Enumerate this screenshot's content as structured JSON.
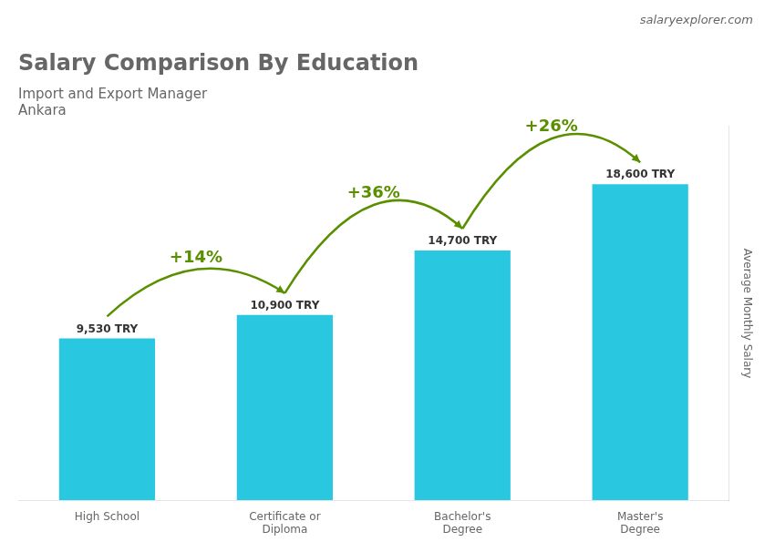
{
  "chart_data": {
    "type": "bar",
    "title": "Salary Comparison By Education",
    "subtitle": "Import and Export Manager",
    "y_label": "Average Monthly Salary",
    "categories": [
      "High School",
      "Certificate or\nDiploma",
      "Bachelor's\nDegree",
      "Master's\nDegree"
    ],
    "values": [
      9530,
      10900,
      14700,
      18600
    ],
    "value_labels": [
      "9,530 TRY",
      "10,900 TRY",
      "14,700 TRY",
      "18,600 TRY"
    ],
    "data_labels": true,
    "color": "#29c8e0",
    "ylim": [
      0,
      22000
    ],
    "grid": false,
    "tick_labels": "x",
    "annotations": [
      {
        "text": "Ankara"
      },
      {
        "text": "salaryexplorer.com"
      },
      {
        "text": "+14%",
        "from": "High School",
        "to": "Certificate or\nDiploma"
      },
      {
        "text": "+36%",
        "from": "Certificate or\nDiploma",
        "to": "Bachelor's\nDegree"
      },
      {
        "text": "+26%",
        "from": "Bachelor's\nDegree",
        "to": "Master's\nDegree"
      }
    ]
  }
}
